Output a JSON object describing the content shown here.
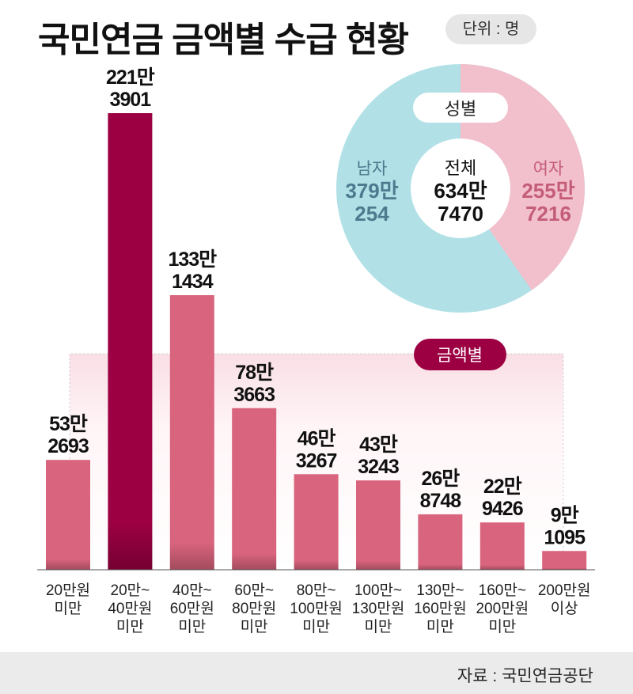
{
  "title": "국민연금 금액별 수급 현황",
  "unit": "단위 : 명",
  "source": "자료 : 국민연금공단",
  "colors": {
    "bar": "#d9647d",
    "highlight": "#9c0042",
    "male": "#b1e1e7",
    "female": "#f2bfcc",
    "male_text": "#4e7a8e",
    "female_text": "#c45d78",
    "badge": "#9c0042"
  },
  "chart_data": [
    {
      "type": "pie",
      "title": "성별",
      "center_label": "전체",
      "center_value": [
        "634만",
        "7470"
      ],
      "total": 6347470,
      "slices": [
        {
          "name": "남자",
          "value": 3790254,
          "label": [
            "379만",
            "254"
          ]
        },
        {
          "name": "여자",
          "value": 2557216,
          "label": [
            "255만",
            "7216"
          ]
        }
      ]
    },
    {
      "type": "bar",
      "title": "금액별",
      "categories": [
        [
          "20만원",
          "미만"
        ],
        [
          "20만~",
          "40만원",
          "미만"
        ],
        [
          "40만~",
          "60만원",
          "미만"
        ],
        [
          "60만~",
          "80만원",
          "미만"
        ],
        [
          "80만~",
          "100만원",
          "미만"
        ],
        [
          "100만~",
          "130만원",
          "미만"
        ],
        [
          "130만~",
          "160만원",
          "미만"
        ],
        [
          "160만~",
          "200만원",
          "미만"
        ],
        [
          "200만원",
          "이상"
        ]
      ],
      "values": [
        532693,
        2213901,
        1331434,
        783663,
        463267,
        433243,
        268748,
        229426,
        91095
      ],
      "labels": [
        [
          "53만",
          "2693"
        ],
        [
          "221만",
          "3901"
        ],
        [
          "133만",
          "1434"
        ],
        [
          "78만",
          "3663"
        ],
        [
          "46만",
          "3267"
        ],
        [
          "43만",
          "3243"
        ],
        [
          "26만",
          "8748"
        ],
        [
          "22만",
          "9426"
        ],
        [
          "9만",
          "1095"
        ]
      ],
      "highlight_index": 1
    }
  ]
}
